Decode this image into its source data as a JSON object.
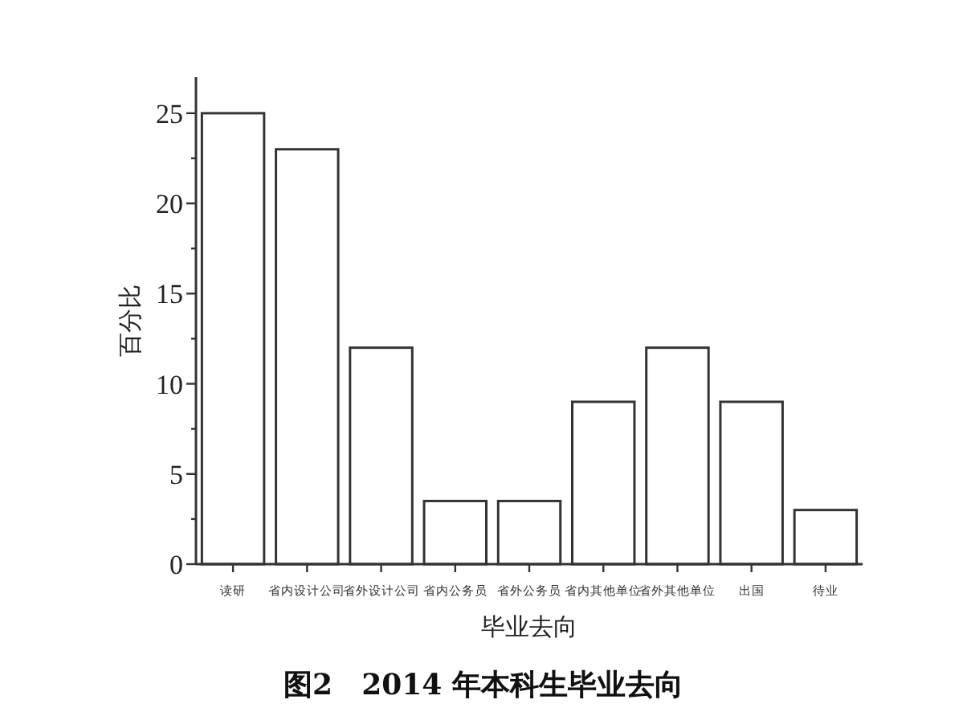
{
  "chart_data": {
    "type": "bar",
    "title": "图2　2014 年本科生毕业去向",
    "xlabel": "毕业去向",
    "ylabel": "百分比",
    "categories": [
      "读研",
      "省内设计公司",
      "省外设计公司",
      "省内公务员",
      "省外公务员",
      "省内其他单位",
      "省外其他单位",
      "出国",
      "待业"
    ],
    "values": [
      25,
      23,
      12,
      3.5,
      3.5,
      9,
      12,
      9,
      3
    ],
    "color": "#ffffff",
    "ylim": [
      0,
      27
    ],
    "yticks": [
      0,
      {
        "value": 2.5,
        "label": null
      },
      5,
      {
        "value": 7.5,
        "label": null
      },
      10,
      {
        "value": 12.5,
        "label": null
      },
      15,
      {
        "value": 17.5,
        "label": null
      },
      20,
      {
        "value": 22.5,
        "label": null
      },
      25
    ],
    "grid": false
  }
}
